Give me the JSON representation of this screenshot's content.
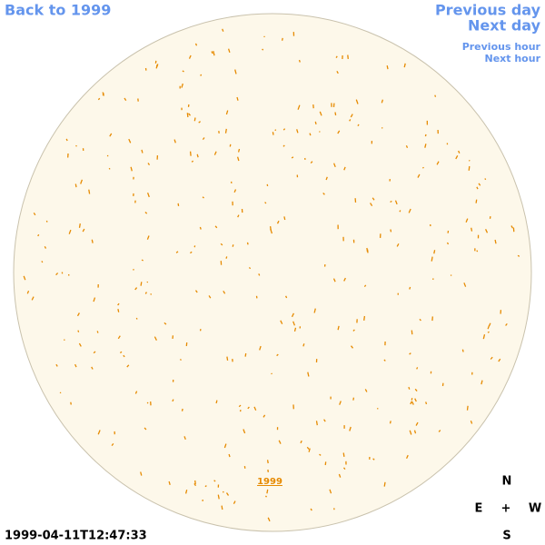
{
  "links": {
    "back": "Back to 1999",
    "previous_day": "Previous day",
    "next_day": "Next day",
    "previous_hour": "Previous hour",
    "next_hour": "Next hour"
  },
  "timestamp": "1999-04-11T12:47:33",
  "compass": {
    "north": "N",
    "east": "E",
    "center": "+",
    "west": "W",
    "south": "S"
  },
  "disk_label": "1999"
}
